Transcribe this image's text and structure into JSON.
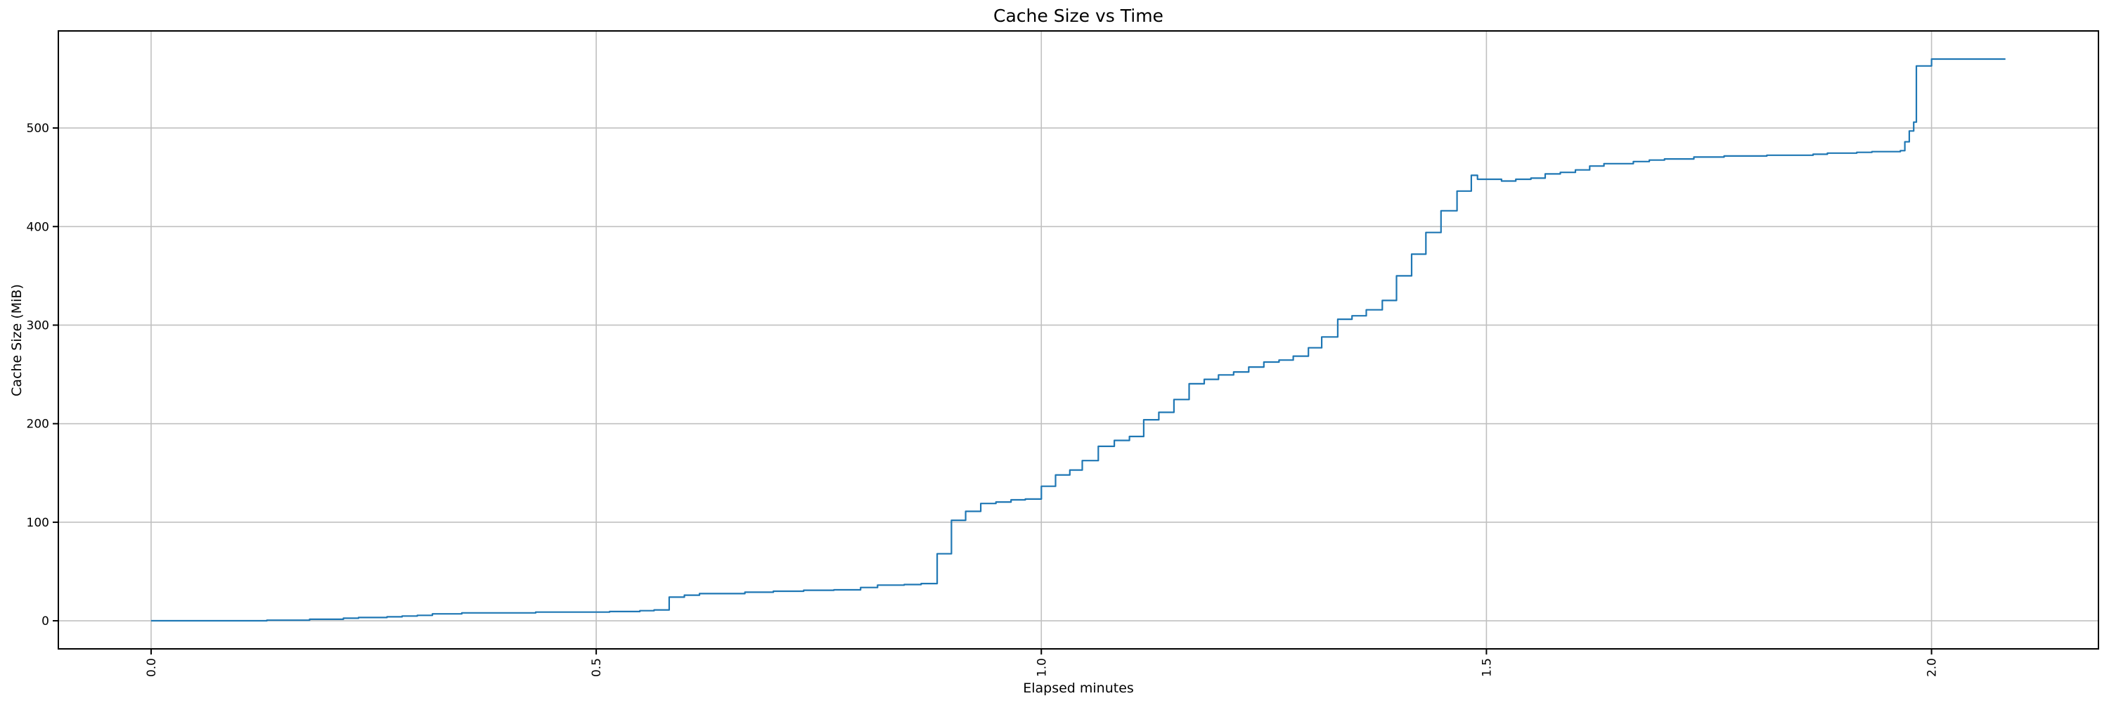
{
  "chart_data": {
    "type": "line",
    "title": "Cache Size vs Time",
    "xlabel": "Elapsed minutes",
    "ylabel": "Cache Size (MiB)",
    "line_color": "#1f77b4",
    "grid_color": "#c0c0c0",
    "spine_color": "#000000",
    "background": "#ffffff",
    "grid": true,
    "legend": "none",
    "step_style": "post",
    "xlim": [
      -0.1042,
      2.1875
    ],
    "ylim": [
      -28.5,
      598.5
    ],
    "x_ticks": [
      {
        "value": 0.0,
        "label": "0.0"
      },
      {
        "value": 0.5,
        "label": "0.5"
      },
      {
        "value": 1.0,
        "label": "1.0"
      },
      {
        "value": 1.5,
        "label": "1.5"
      },
      {
        "value": 2.0,
        "label": "2.0"
      }
    ],
    "y_ticks": [
      {
        "value": 0,
        "label": "0"
      },
      {
        "value": 100,
        "label": "100"
      },
      {
        "value": 200,
        "label": "200"
      },
      {
        "value": 300,
        "label": "300"
      },
      {
        "value": 400,
        "label": "400"
      },
      {
        "value": 500,
        "label": "500"
      }
    ],
    "series": [
      {
        "name": "cache_size_mib",
        "points": [
          [
            0.0,
            0
          ],
          [
            0.13,
            0.6
          ],
          [
            0.178,
            1.5
          ],
          [
            0.216,
            2.6
          ],
          [
            0.233,
            3.3
          ],
          [
            0.265,
            4.0
          ],
          [
            0.282,
            4.8
          ],
          [
            0.299,
            5.5
          ],
          [
            0.316,
            7.0
          ],
          [
            0.349,
            8.0
          ],
          [
            0.432,
            8.8
          ],
          [
            0.515,
            9.4
          ],
          [
            0.549,
            10.2
          ],
          [
            0.565,
            11.0
          ],
          [
            0.582,
            24.0
          ],
          [
            0.599,
            26.0
          ],
          [
            0.616,
            27.6
          ],
          [
            0.667,
            29.0
          ],
          [
            0.699,
            30.0
          ],
          [
            0.733,
            31.0
          ],
          [
            0.767,
            31.4
          ],
          [
            0.797,
            33.8
          ],
          [
            0.816,
            36.2
          ],
          [
            0.846,
            36.8
          ],
          [
            0.865,
            37.8
          ],
          [
            0.883,
            68.0
          ],
          [
            0.899,
            102.0
          ],
          [
            0.915,
            111.0
          ],
          [
            0.932,
            119.0
          ],
          [
            0.949,
            120.5
          ],
          [
            0.966,
            122.7
          ],
          [
            0.982,
            123.5
          ],
          [
            1.0,
            136.5
          ],
          [
            1.016,
            148.0
          ],
          [
            1.032,
            153.0
          ],
          [
            1.046,
            162.5
          ],
          [
            1.064,
            177.0
          ],
          [
            1.082,
            183.0
          ],
          [
            1.099,
            187.0
          ],
          [
            1.115,
            204.0
          ],
          [
            1.132,
            211.5
          ],
          [
            1.149,
            224.5
          ],
          [
            1.166,
            240.5
          ],
          [
            1.183,
            245.0
          ],
          [
            1.199,
            249.5
          ],
          [
            1.216,
            252.5
          ],
          [
            1.233,
            257.5
          ],
          [
            1.25,
            262.5
          ],
          [
            1.267,
            264.5
          ],
          [
            1.283,
            268.5
          ],
          [
            1.3,
            277.0
          ],
          [
            1.315,
            288.0
          ],
          [
            1.333,
            306.0
          ],
          [
            1.349,
            309.5
          ],
          [
            1.365,
            315.5
          ],
          [
            1.383,
            325.0
          ],
          [
            1.399,
            350.0
          ],
          [
            1.416,
            372.0
          ],
          [
            1.432,
            394.0
          ],
          [
            1.449,
            416.0
          ],
          [
            1.467,
            436.0
          ],
          [
            1.483,
            452.0
          ],
          [
            1.49,
            448.0
          ],
          [
            1.517,
            446.2
          ],
          [
            1.533,
            448.0
          ],
          [
            1.55,
            449.1
          ],
          [
            1.566,
            453.4
          ],
          [
            1.583,
            455.0
          ],
          [
            1.6,
            457.5
          ],
          [
            1.616,
            461.4
          ],
          [
            1.632,
            463.8
          ],
          [
            1.665,
            466.0
          ],
          [
            1.683,
            467.5
          ],
          [
            1.7,
            468.6
          ],
          [
            1.733,
            470.5
          ],
          [
            1.767,
            471.6
          ],
          [
            1.815,
            472.4
          ],
          [
            1.867,
            473.4
          ],
          [
            1.883,
            474.5
          ],
          [
            1.916,
            475.3
          ],
          [
            1.933,
            476.0
          ],
          [
            1.965,
            477.0
          ],
          [
            1.97,
            486.0
          ],
          [
            1.975,
            497.0
          ],
          [
            1.98,
            506.0
          ],
          [
            1.983,
            563.0
          ],
          [
            2.0,
            570.0
          ],
          [
            2.083,
            570.0
          ]
        ]
      }
    ]
  }
}
